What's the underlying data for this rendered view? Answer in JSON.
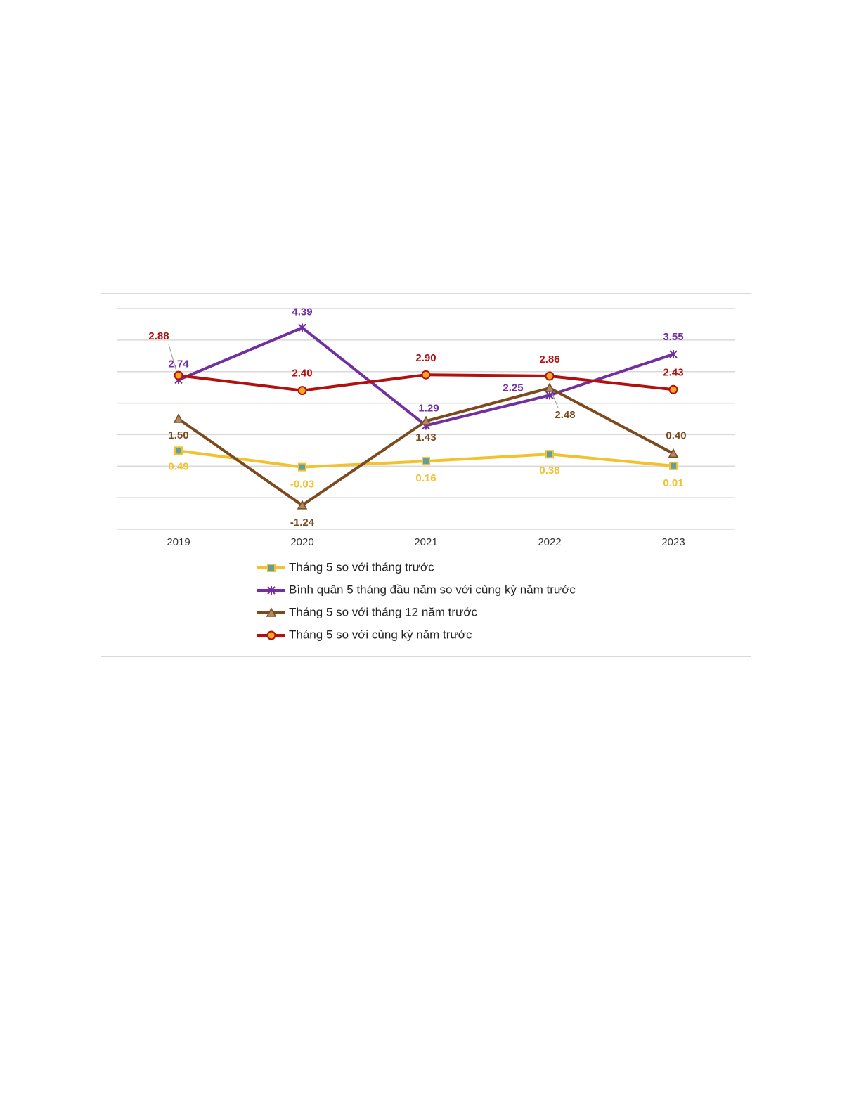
{
  "chart_data": {
    "type": "line",
    "categories": [
      "2019",
      "2020",
      "2021",
      "2022",
      "2023"
    ],
    "ylim": [
      -2,
      5
    ],
    "yticks": [
      -2,
      -1,
      0,
      1,
      2,
      3,
      4,
      5
    ],
    "grid": true,
    "series": [
      {
        "name": "Tháng 5 so với tháng trước",
        "color": "#f2c12e",
        "marker": "square",
        "values": [
          0.49,
          -0.03,
          0.16,
          0.38,
          0.01
        ],
        "value_labels": [
          "0.49",
          "-0.03",
          "0.16",
          "0.38",
          "0.01"
        ]
      },
      {
        "name": "Bình quân 5 tháng đầu năm so với cùng kỳ năm trước",
        "color": "#7030a0",
        "marker": "star",
        "values": [
          2.74,
          4.39,
          1.29,
          2.25,
          3.55
        ],
        "value_labels": [
          "2.74",
          "4.39",
          "1.29",
          "2.25",
          "3.55"
        ]
      },
      {
        "name": "Tháng 5 so với tháng 12 năm trước",
        "color": "#7b4a1e",
        "marker": "triangle",
        "values": [
          1.5,
          -1.24,
          1.43,
          2.48,
          0.4
        ],
        "value_labels": [
          "1.50",
          "-1.24",
          "1.43",
          "2.48",
          "0.40"
        ]
      },
      {
        "name": "Tháng 5 so với cùng kỳ năm trước",
        "color": "#b20f0f",
        "marker": "circle",
        "values": [
          2.88,
          2.4,
          2.9,
          2.86,
          2.43
        ],
        "value_labels": [
          "2.88",
          "2.40",
          "2.90",
          "2.86",
          "2.43"
        ]
      }
    ]
  }
}
